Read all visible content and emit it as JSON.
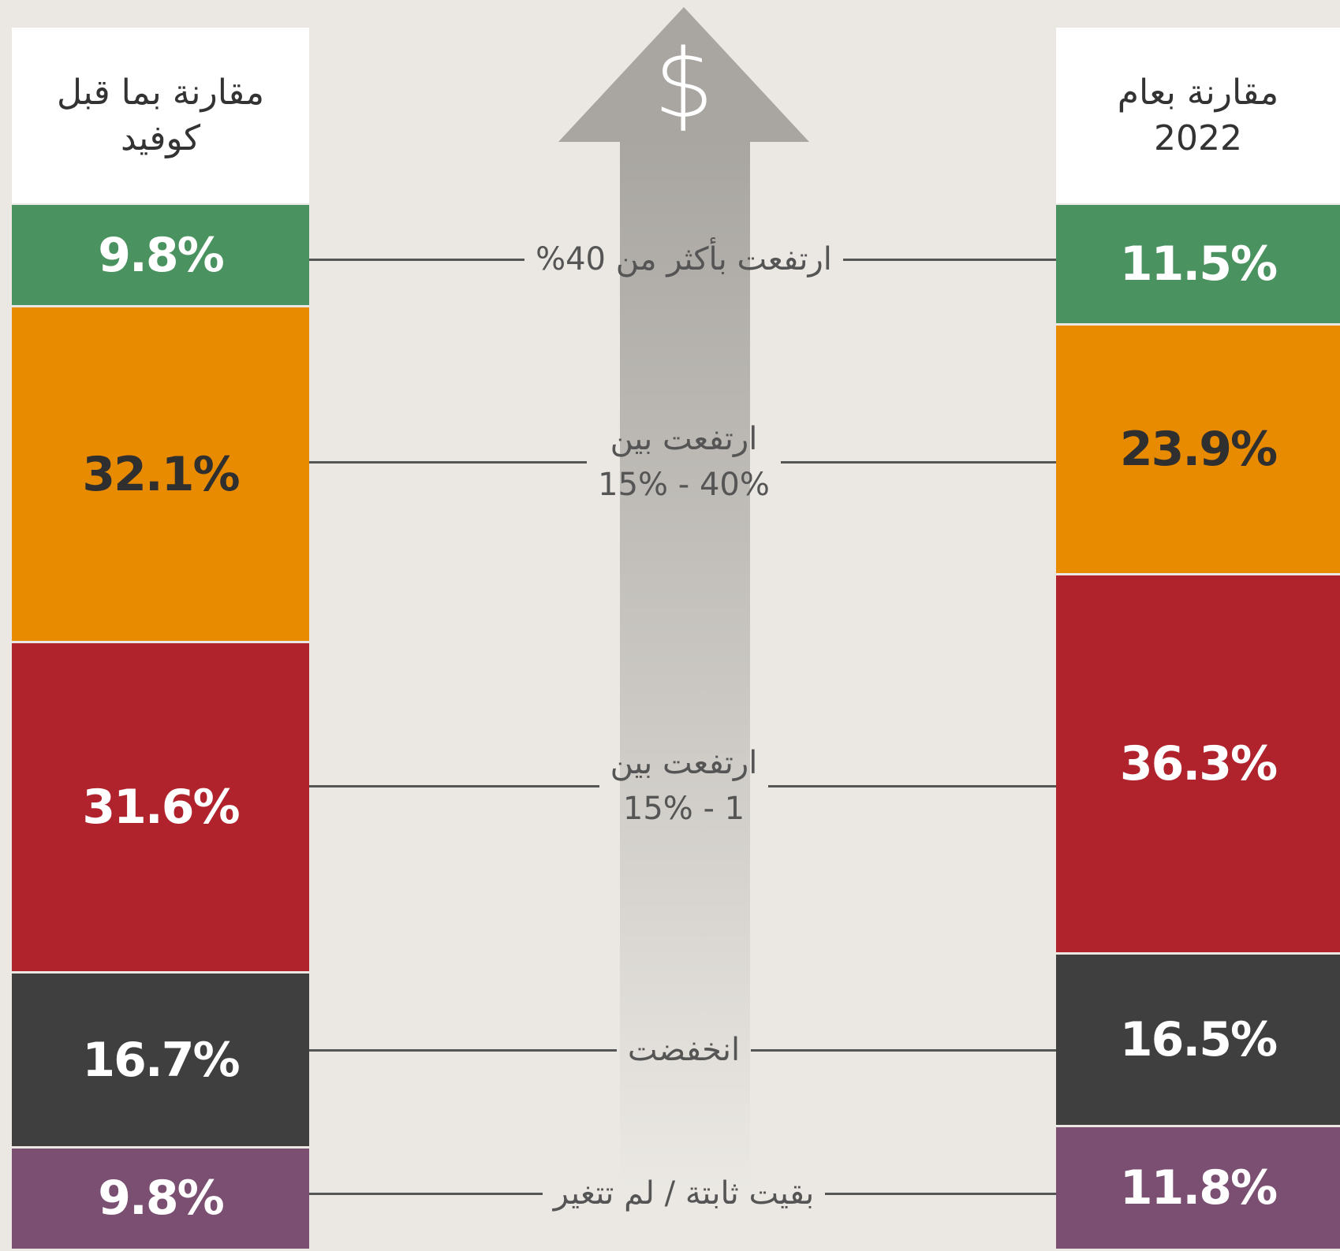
{
  "chart_data": {
    "type": "stacked_bar",
    "categories": [
      "مقارنة بما قبل\nكوفيد",
      "مقارنة بعام\n2022"
    ],
    "icon_text": "$",
    "ylim": [
      0,
      100
    ],
    "series": [
      {
        "name": "ارتفعت بأكثر من 40%",
        "color": "#4a9361",
        "label_color": "#ffffff",
        "values": [
          9.8,
          11.5
        ],
        "value_labels": [
          "9.8%",
          "11.5%"
        ]
      },
      {
        "name": "ارتفعت بين\n40% - 15%",
        "color": "#e98b00",
        "label_color": "#2f2f2f",
        "values": [
          32.1,
          23.9
        ],
        "value_labels": [
          "32.1%",
          "23.9%"
        ]
      },
      {
        "name": "ارتفعت بين\n1 - 15%",
        "color": "#b0222c",
        "label_color": "#ffffff",
        "values": [
          31.6,
          36.3
        ],
        "value_labels": [
          "31.6%",
          "36.3%"
        ]
      },
      {
        "name": "انخفضت",
        "color": "#3f3f3f",
        "label_color": "#ffffff",
        "values": [
          16.7,
          16.5
        ],
        "value_labels": [
          "16.7%",
          "16.5%"
        ]
      },
      {
        "name": "بقيت ثابتة / لم تتغير",
        "color": "#7b4f72",
        "label_color": "#ffffff",
        "values": [
          9.8,
          11.8
        ],
        "value_labels": [
          "9.8%",
          "11.8%"
        ]
      }
    ]
  }
}
